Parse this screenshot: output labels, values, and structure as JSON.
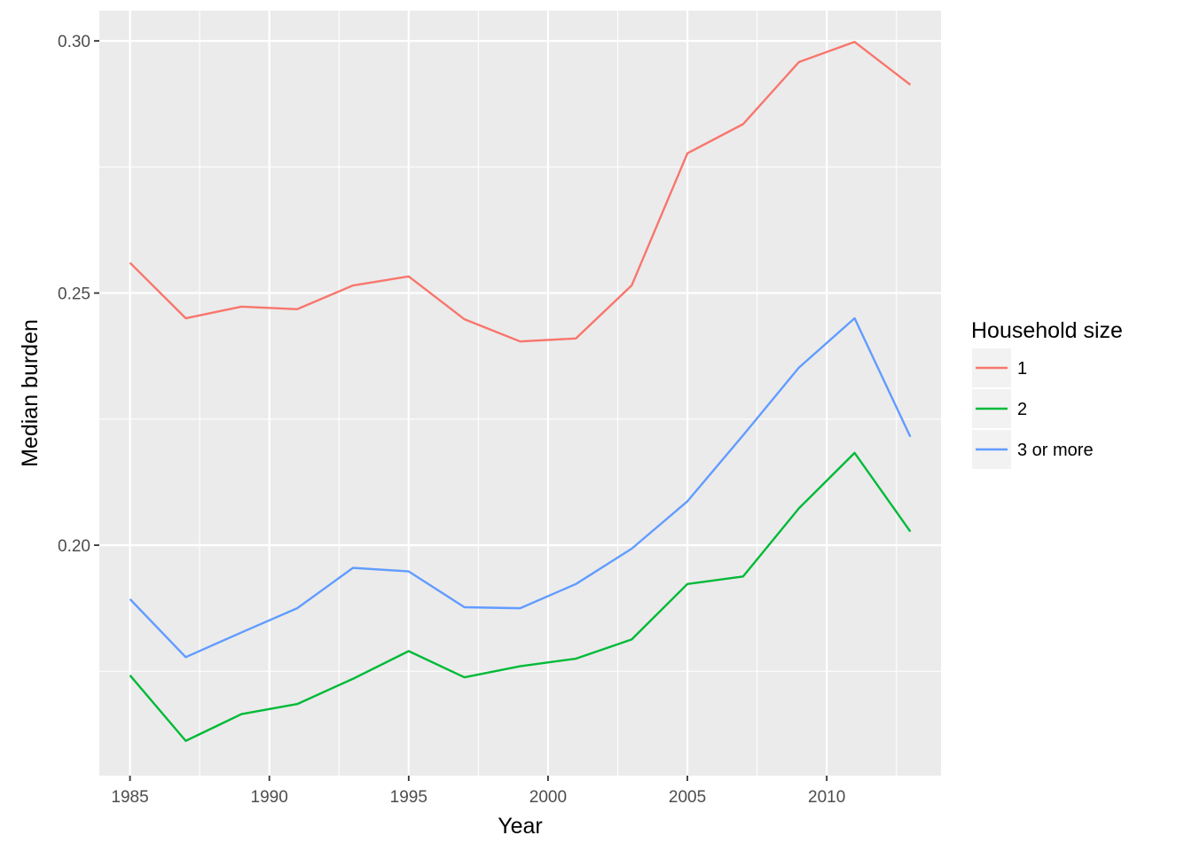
{
  "chart_data": {
    "type": "line",
    "title": "",
    "xlabel": "Year",
    "ylabel": "Median burden",
    "x": [
      1985,
      1987,
      1989,
      1991,
      1993,
      1995,
      1997,
      1999,
      2001,
      2003,
      2005,
      2007,
      2009,
      2011,
      2013
    ],
    "xlim": [
      1983.9,
      2014.1
    ],
    "ylim": [
      0.1543,
      0.306
    ],
    "x_ticks": [
      1985,
      1990,
      1995,
      2000,
      2005,
      2010
    ],
    "x_tick_labels": [
      "1985",
      "1990",
      "1995",
      "2000",
      "2005",
      "2010"
    ],
    "y_ticks": [
      0.2,
      0.25,
      0.3
    ],
    "y_tick_labels": [
      "0.20",
      "0.25",
      "0.30"
    ],
    "grid": true,
    "legend": {
      "title": "Household size",
      "placement": "right"
    },
    "series": [
      {
        "name": "1",
        "color": "#F8766D",
        "values": [
          0.256,
          0.245,
          0.2473,
          0.2468,
          0.2515,
          0.2533,
          0.2448,
          0.2404,
          0.241,
          0.2515,
          0.2777,
          0.2835,
          0.2958,
          0.2998,
          0.2913
        ]
      },
      {
        "name": "2",
        "color": "#00BA38",
        "values": [
          0.1742,
          0.1612,
          0.1665,
          0.1685,
          0.1735,
          0.179,
          0.1738,
          0.176,
          0.1775,
          0.1813,
          0.1923,
          0.1938,
          0.2073,
          0.2183,
          0.2027
        ]
      },
      {
        "name": "3 or more",
        "color": "#619CFF",
        "values": [
          0.1893,
          0.1778,
          0.1827,
          0.1875,
          0.1955,
          0.1948,
          0.1877,
          0.1875,
          0.1923,
          0.1993,
          0.2087,
          0.2218,
          0.2352,
          0.245,
          0.2215
        ]
      }
    ]
  }
}
